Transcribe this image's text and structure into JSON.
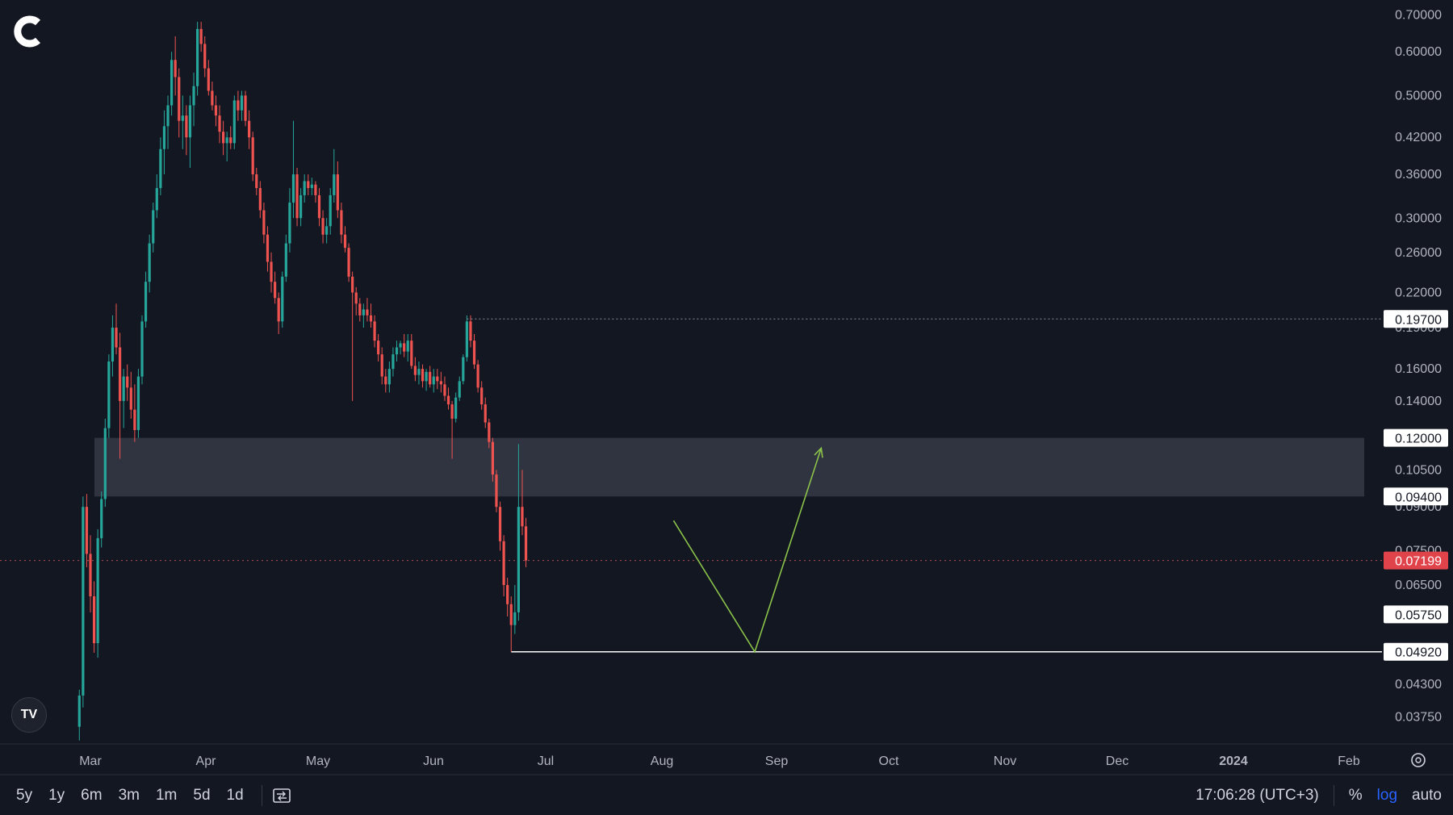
{
  "chart_data": {
    "type": "candlestick",
    "scale": "log",
    "ylim": [
      0.0335,
      0.72
    ],
    "y_ticks": [
      "0.70000",
      "0.60000",
      "0.50000",
      "0.42000",
      "0.36000",
      "0.30000",
      "0.26000",
      "0.22000",
      "0.19000",
      "0.16000",
      "0.14000",
      "0.12000",
      "0.10500",
      "0.09000",
      "0.07500",
      "0.06500",
      "0.05750",
      "0.04920",
      "0.04300",
      "0.03750"
    ],
    "x_ticks": [
      "Mar",
      "Apr",
      "May",
      "Jun",
      "Jul",
      "Aug",
      "Sep",
      "Oct",
      "Nov",
      "Dec",
      "2024",
      "Feb"
    ],
    "price_labels": [
      {
        "value": "0.19700",
        "kind": "marker"
      },
      {
        "value": "0.12000",
        "kind": "marker"
      },
      {
        "value": "0.09400",
        "kind": "marker"
      },
      {
        "value": "0.07199",
        "kind": "current"
      },
      {
        "value": "0.05750",
        "kind": "marker"
      },
      {
        "value": "0.04920",
        "kind": "marker"
      }
    ],
    "zone": {
      "from": 0.094,
      "to": 0.12
    },
    "support_line": 0.0492,
    "resistance_line": 0.197,
    "current_price": 0.07199,
    "projection": [
      {
        "date": "Aug 6",
        "price": 0.085
      },
      {
        "date": "Aug 28",
        "price": 0.0492
      },
      {
        "date": "Sep 15",
        "price": 0.115
      }
    ],
    "candles": [
      {
        "date": "Feb 26",
        "o": 0.036,
        "h": 0.042,
        "l": 0.034,
        "c": 0.041
      },
      {
        "date": "Feb 27",
        "o": 0.041,
        "h": 0.094,
        "l": 0.039,
        "c": 0.09
      },
      {
        "date": "Feb 28",
        "o": 0.09,
        "h": 0.095,
        "l": 0.07,
        "c": 0.074
      },
      {
        "date": "Mar 1",
        "o": 0.074,
        "h": 0.08,
        "l": 0.058,
        "c": 0.062
      },
      {
        "date": "Mar 2",
        "o": 0.062,
        "h": 0.066,
        "l": 0.049,
        "c": 0.051
      },
      {
        "date": "Mar 3",
        "o": 0.051,
        "h": 0.082,
        "l": 0.048,
        "c": 0.079
      },
      {
        "date": "Mar 4",
        "o": 0.079,
        "h": 0.096,
        "l": 0.076,
        "c": 0.093
      },
      {
        "date": "Mar 5",
        "o": 0.093,
        "h": 0.13,
        "l": 0.09,
        "c": 0.125
      },
      {
        "date": "Mar 6",
        "o": 0.125,
        "h": 0.17,
        "l": 0.12,
        "c": 0.165
      },
      {
        "date": "Mar 7",
        "o": 0.165,
        "h": 0.2,
        "l": 0.155,
        "c": 0.19
      },
      {
        "date": "Mar 8",
        "o": 0.19,
        "h": 0.21,
        "l": 0.17,
        "c": 0.175
      },
      {
        "date": "Mar 9",
        "o": 0.175,
        "h": 0.186,
        "l": 0.11,
        "c": 0.14
      },
      {
        "date": "Mar 10",
        "o": 0.14,
        "h": 0.16,
        "l": 0.125,
        "c": 0.155
      },
      {
        "date": "Mar 11",
        "o": 0.155,
        "h": 0.163,
        "l": 0.14,
        "c": 0.148
      },
      {
        "date": "Mar 12",
        "o": 0.148,
        "h": 0.158,
        "l": 0.13,
        "c": 0.135
      },
      {
        "date": "Mar 13",
        "o": 0.135,
        "h": 0.15,
        "l": 0.118,
        "c": 0.124
      },
      {
        "date": "Mar 14",
        "o": 0.124,
        "h": 0.16,
        "l": 0.12,
        "c": 0.155
      },
      {
        "date": "Mar 15",
        "o": 0.155,
        "h": 0.2,
        "l": 0.15,
        "c": 0.195
      },
      {
        "date": "Mar 16",
        "o": 0.195,
        "h": 0.24,
        "l": 0.19,
        "c": 0.23
      },
      {
        "date": "Mar 17",
        "o": 0.23,
        "h": 0.28,
        "l": 0.22,
        "c": 0.27
      },
      {
        "date": "Mar 18",
        "o": 0.27,
        "h": 0.32,
        "l": 0.26,
        "c": 0.31
      },
      {
        "date": "Mar 19",
        "o": 0.31,
        "h": 0.36,
        "l": 0.3,
        "c": 0.34
      },
      {
        "date": "Mar 20",
        "o": 0.34,
        "h": 0.42,
        "l": 0.33,
        "c": 0.4
      },
      {
        "date": "Mar 21",
        "o": 0.4,
        "h": 0.47,
        "l": 0.36,
        "c": 0.44
      },
      {
        "date": "Mar 22",
        "o": 0.44,
        "h": 0.5,
        "l": 0.4,
        "c": 0.48
      },
      {
        "date": "Mar 23",
        "o": 0.48,
        "h": 0.6,
        "l": 0.46,
        "c": 0.58
      },
      {
        "date": "Mar 24",
        "o": 0.58,
        "h": 0.64,
        "l": 0.5,
        "c": 0.54
      },
      {
        "date": "Mar 25",
        "o": 0.54,
        "h": 0.56,
        "l": 0.42,
        "c": 0.45
      },
      {
        "date": "Mar 26",
        "o": 0.45,
        "h": 0.5,
        "l": 0.4,
        "c": 0.46
      },
      {
        "date": "Mar 27",
        "o": 0.46,
        "h": 0.48,
        "l": 0.39,
        "c": 0.42
      },
      {
        "date": "Mar 28",
        "o": 0.42,
        "h": 0.5,
        "l": 0.37,
        "c": 0.48
      },
      {
        "date": "Mar 29",
        "o": 0.48,
        "h": 0.55,
        "l": 0.44,
        "c": 0.52
      },
      {
        "date": "Mar 30",
        "o": 0.52,
        "h": 0.68,
        "l": 0.5,
        "c": 0.66
      },
      {
        "date": "Mar 31",
        "o": 0.66,
        "h": 0.68,
        "l": 0.6,
        "c": 0.62
      },
      {
        "date": "Apr 1",
        "o": 0.62,
        "h": 0.64,
        "l": 0.54,
        "c": 0.56
      },
      {
        "date": "Apr 2",
        "o": 0.56,
        "h": 0.58,
        "l": 0.5,
        "c": 0.51
      },
      {
        "date": "Apr 3",
        "o": 0.51,
        "h": 0.53,
        "l": 0.47,
        "c": 0.48
      },
      {
        "date": "Apr 4",
        "o": 0.48,
        "h": 0.5,
        "l": 0.44,
        "c": 0.46
      },
      {
        "date": "Apr 5",
        "o": 0.46,
        "h": 0.48,
        "l": 0.41,
        "c": 0.43
      },
      {
        "date": "Apr 6",
        "o": 0.43,
        "h": 0.45,
        "l": 0.39,
        "c": 0.41
      },
      {
        "date": "Apr 7",
        "o": 0.41,
        "h": 0.43,
        "l": 0.38,
        "c": 0.42
      },
      {
        "date": "Apr 8",
        "o": 0.42,
        "h": 0.44,
        "l": 0.4,
        "c": 0.41
      },
      {
        "date": "Apr 9",
        "o": 0.41,
        "h": 0.5,
        "l": 0.4,
        "c": 0.49
      },
      {
        "date": "Apr 10",
        "o": 0.49,
        "h": 0.51,
        "l": 0.45,
        "c": 0.47
      },
      {
        "date": "Apr 11",
        "o": 0.47,
        "h": 0.51,
        "l": 0.45,
        "c": 0.5
      },
      {
        "date": "Apr 12",
        "o": 0.5,
        "h": 0.51,
        "l": 0.44,
        "c": 0.45
      },
      {
        "date": "Apr 13",
        "o": 0.45,
        "h": 0.47,
        "l": 0.4,
        "c": 0.42
      },
      {
        "date": "Apr 14",
        "o": 0.42,
        "h": 0.43,
        "l": 0.35,
        "c": 0.36
      },
      {
        "date": "Apr 15",
        "o": 0.36,
        "h": 0.37,
        "l": 0.33,
        "c": 0.34
      },
      {
        "date": "Apr 16",
        "o": 0.34,
        "h": 0.35,
        "l": 0.3,
        "c": 0.31
      },
      {
        "date": "Apr 17",
        "o": 0.31,
        "h": 0.32,
        "l": 0.27,
        "c": 0.28
      },
      {
        "date": "Apr 18",
        "o": 0.28,
        "h": 0.29,
        "l": 0.24,
        "c": 0.25
      },
      {
        "date": "Apr 19",
        "o": 0.25,
        "h": 0.26,
        "l": 0.22,
        "c": 0.23
      },
      {
        "date": "Apr 20",
        "o": 0.23,
        "h": 0.24,
        "l": 0.21,
        "c": 0.215
      },
      {
        "date": "Apr 21",
        "o": 0.215,
        "h": 0.22,
        "l": 0.185,
        "c": 0.195
      },
      {
        "date": "Apr 22",
        "o": 0.195,
        "h": 0.24,
        "l": 0.19,
        "c": 0.235
      },
      {
        "date": "Apr 23",
        "o": 0.235,
        "h": 0.28,
        "l": 0.23,
        "c": 0.27
      },
      {
        "date": "Apr 24",
        "o": 0.27,
        "h": 0.34,
        "l": 0.26,
        "c": 0.32
      },
      {
        "date": "Apr 25",
        "o": 0.32,
        "h": 0.45,
        "l": 0.3,
        "c": 0.36
      },
      {
        "date": "Apr 26",
        "o": 0.36,
        "h": 0.37,
        "l": 0.29,
        "c": 0.3
      },
      {
        "date": "Apr 27",
        "o": 0.3,
        "h": 0.34,
        "l": 0.29,
        "c": 0.33
      },
      {
        "date": "Apr 28",
        "o": 0.33,
        "h": 0.36,
        "l": 0.32,
        "c": 0.35
      },
      {
        "date": "Apr 29",
        "o": 0.35,
        "h": 0.36,
        "l": 0.33,
        "c": 0.34
      },
      {
        "date": "Apr 30",
        "o": 0.34,
        "h": 0.355,
        "l": 0.33,
        "c": 0.345
      },
      {
        "date": "May 1",
        "o": 0.345,
        "h": 0.35,
        "l": 0.32,
        "c": 0.33
      },
      {
        "date": "May 2",
        "o": 0.33,
        "h": 0.34,
        "l": 0.29,
        "c": 0.3
      },
      {
        "date": "May 3",
        "o": 0.3,
        "h": 0.31,
        "l": 0.27,
        "c": 0.28
      },
      {
        "date": "May 4",
        "o": 0.28,
        "h": 0.3,
        "l": 0.27,
        "c": 0.29
      },
      {
        "date": "May 5",
        "o": 0.29,
        "h": 0.34,
        "l": 0.28,
        "c": 0.33
      },
      {
        "date": "May 6",
        "o": 0.33,
        "h": 0.4,
        "l": 0.32,
        "c": 0.36
      },
      {
        "date": "May 7",
        "o": 0.36,
        "h": 0.38,
        "l": 0.3,
        "c": 0.31
      },
      {
        "date": "May 8",
        "o": 0.31,
        "h": 0.32,
        "l": 0.27,
        "c": 0.28
      },
      {
        "date": "May 9",
        "o": 0.28,
        "h": 0.29,
        "l": 0.26,
        "c": 0.265
      },
      {
        "date": "May 10",
        "o": 0.265,
        "h": 0.27,
        "l": 0.23,
        "c": 0.235
      },
      {
        "date": "May 11",
        "o": 0.235,
        "h": 0.24,
        "l": 0.14,
        "c": 0.22
      },
      {
        "date": "May 12",
        "o": 0.22,
        "h": 0.225,
        "l": 0.2,
        "c": 0.21
      },
      {
        "date": "May 13",
        "o": 0.21,
        "h": 0.215,
        "l": 0.195,
        "c": 0.2
      },
      {
        "date": "May 14",
        "o": 0.2,
        "h": 0.21,
        "l": 0.19,
        "c": 0.205
      },
      {
        "date": "May 15",
        "o": 0.205,
        "h": 0.215,
        "l": 0.195,
        "c": 0.2
      },
      {
        "date": "May 16",
        "o": 0.2,
        "h": 0.21,
        "l": 0.19,
        "c": 0.195
      },
      {
        "date": "May 17",
        "o": 0.195,
        "h": 0.2,
        "l": 0.175,
        "c": 0.18
      },
      {
        "date": "May 18",
        "o": 0.18,
        "h": 0.185,
        "l": 0.165,
        "c": 0.17
      },
      {
        "date": "May 19",
        "o": 0.17,
        "h": 0.175,
        "l": 0.15,
        "c": 0.155
      },
      {
        "date": "May 20",
        "o": 0.155,
        "h": 0.16,
        "l": 0.145,
        "c": 0.15
      },
      {
        "date": "May 21",
        "o": 0.15,
        "h": 0.165,
        "l": 0.145,
        "c": 0.16
      },
      {
        "date": "May 22",
        "o": 0.16,
        "h": 0.175,
        "l": 0.155,
        "c": 0.17
      },
      {
        "date": "May 23",
        "o": 0.17,
        "h": 0.18,
        "l": 0.165,
        "c": 0.175
      },
      {
        "date": "May 24",
        "o": 0.175,
        "h": 0.18,
        "l": 0.17,
        "c": 0.178
      },
      {
        "date": "May 25",
        "o": 0.178,
        "h": 0.185,
        "l": 0.168,
        "c": 0.172
      },
      {
        "date": "May 26",
        "o": 0.172,
        "h": 0.185,
        "l": 0.165,
        "c": 0.18
      },
      {
        "date": "May 27",
        "o": 0.18,
        "h": 0.185,
        "l": 0.16,
        "c": 0.162
      },
      {
        "date": "May 28",
        "o": 0.162,
        "h": 0.168,
        "l": 0.152,
        "c": 0.156
      },
      {
        "date": "May 29",
        "o": 0.156,
        "h": 0.165,
        "l": 0.15,
        "c": 0.16
      },
      {
        "date": "May 30",
        "o": 0.16,
        "h": 0.163,
        "l": 0.148,
        "c": 0.152
      },
      {
        "date": "May 31",
        "o": 0.152,
        "h": 0.16,
        "l": 0.146,
        "c": 0.158
      },
      {
        "date": "Jun 1",
        "o": 0.158,
        "h": 0.162,
        "l": 0.148,
        "c": 0.15
      },
      {
        "date": "Jun 2",
        "o": 0.15,
        "h": 0.16,
        "l": 0.145,
        "c": 0.155
      },
      {
        "date": "Jun 3",
        "o": 0.155,
        "h": 0.16,
        "l": 0.147,
        "c": 0.152
      },
      {
        "date": "Jun 4",
        "o": 0.152,
        "h": 0.158,
        "l": 0.145,
        "c": 0.15
      },
      {
        "date": "Jun 5",
        "o": 0.15,
        "h": 0.155,
        "l": 0.14,
        "c": 0.143
      },
      {
        "date": "Jun 6",
        "o": 0.143,
        "h": 0.148,
        "l": 0.135,
        "c": 0.138
      },
      {
        "date": "Jun 7",
        "o": 0.138,
        "h": 0.14,
        "l": 0.11,
        "c": 0.13
      },
      {
        "date": "Jun 8",
        "o": 0.13,
        "h": 0.145,
        "l": 0.128,
        "c": 0.142
      },
      {
        "date": "Jun 9",
        "o": 0.142,
        "h": 0.155,
        "l": 0.14,
        "c": 0.152
      },
      {
        "date": "Jun 10",
        "o": 0.152,
        "h": 0.17,
        "l": 0.15,
        "c": 0.168
      },
      {
        "date": "Jun 11",
        "o": 0.168,
        "h": 0.2,
        "l": 0.165,
        "c": 0.195
      },
      {
        "date": "Jun 12",
        "o": 0.195,
        "h": 0.2,
        "l": 0.175,
        "c": 0.18
      },
      {
        "date": "Jun 13",
        "o": 0.18,
        "h": 0.185,
        "l": 0.16,
        "c": 0.163
      },
      {
        "date": "Jun 14",
        "o": 0.163,
        "h": 0.166,
        "l": 0.145,
        "c": 0.148
      },
      {
        "date": "Jun 15",
        "o": 0.148,
        "h": 0.152,
        "l": 0.135,
        "c": 0.138
      },
      {
        "date": "Jun 16",
        "o": 0.138,
        "h": 0.142,
        "l": 0.125,
        "c": 0.128
      },
      {
        "date": "Jun 17",
        "o": 0.128,
        "h": 0.13,
        "l": 0.115,
        "c": 0.118
      },
      {
        "date": "Jun 18",
        "o": 0.118,
        "h": 0.12,
        "l": 0.1,
        "c": 0.103
      },
      {
        "date": "Jun 19",
        "o": 0.103,
        "h": 0.105,
        "l": 0.088,
        "c": 0.09
      },
      {
        "date": "Jun 20",
        "o": 0.09,
        "h": 0.092,
        "l": 0.075,
        "c": 0.078
      },
      {
        "date": "Jun 21",
        "o": 0.078,
        "h": 0.08,
        "l": 0.062,
        "c": 0.065
      },
      {
        "date": "Jun 22",
        "o": 0.065,
        "h": 0.067,
        "l": 0.057,
        "c": 0.06
      },
      {
        "date": "Jun 23",
        "o": 0.06,
        "h": 0.062,
        "l": 0.0492,
        "c": 0.055
      },
      {
        "date": "Jun 24",
        "o": 0.055,
        "h": 0.065,
        "l": 0.053,
        "c": 0.058
      },
      {
        "date": "Jun 25",
        "o": 0.058,
        "h": 0.117,
        "l": 0.056,
        "c": 0.09
      },
      {
        "date": "Jun 26",
        "o": 0.09,
        "h": 0.105,
        "l": 0.08,
        "c": 0.083
      },
      {
        "date": "Jun 27",
        "o": 0.083,
        "h": 0.086,
        "l": 0.07,
        "c": 0.072
      }
    ]
  },
  "ui": {
    "ranges": [
      "5y",
      "1y",
      "6m",
      "3m",
      "1m",
      "5d",
      "1d"
    ],
    "time": "17:06:28 (UTC+3)",
    "percent": "%",
    "log": "log",
    "auto": "auto"
  }
}
